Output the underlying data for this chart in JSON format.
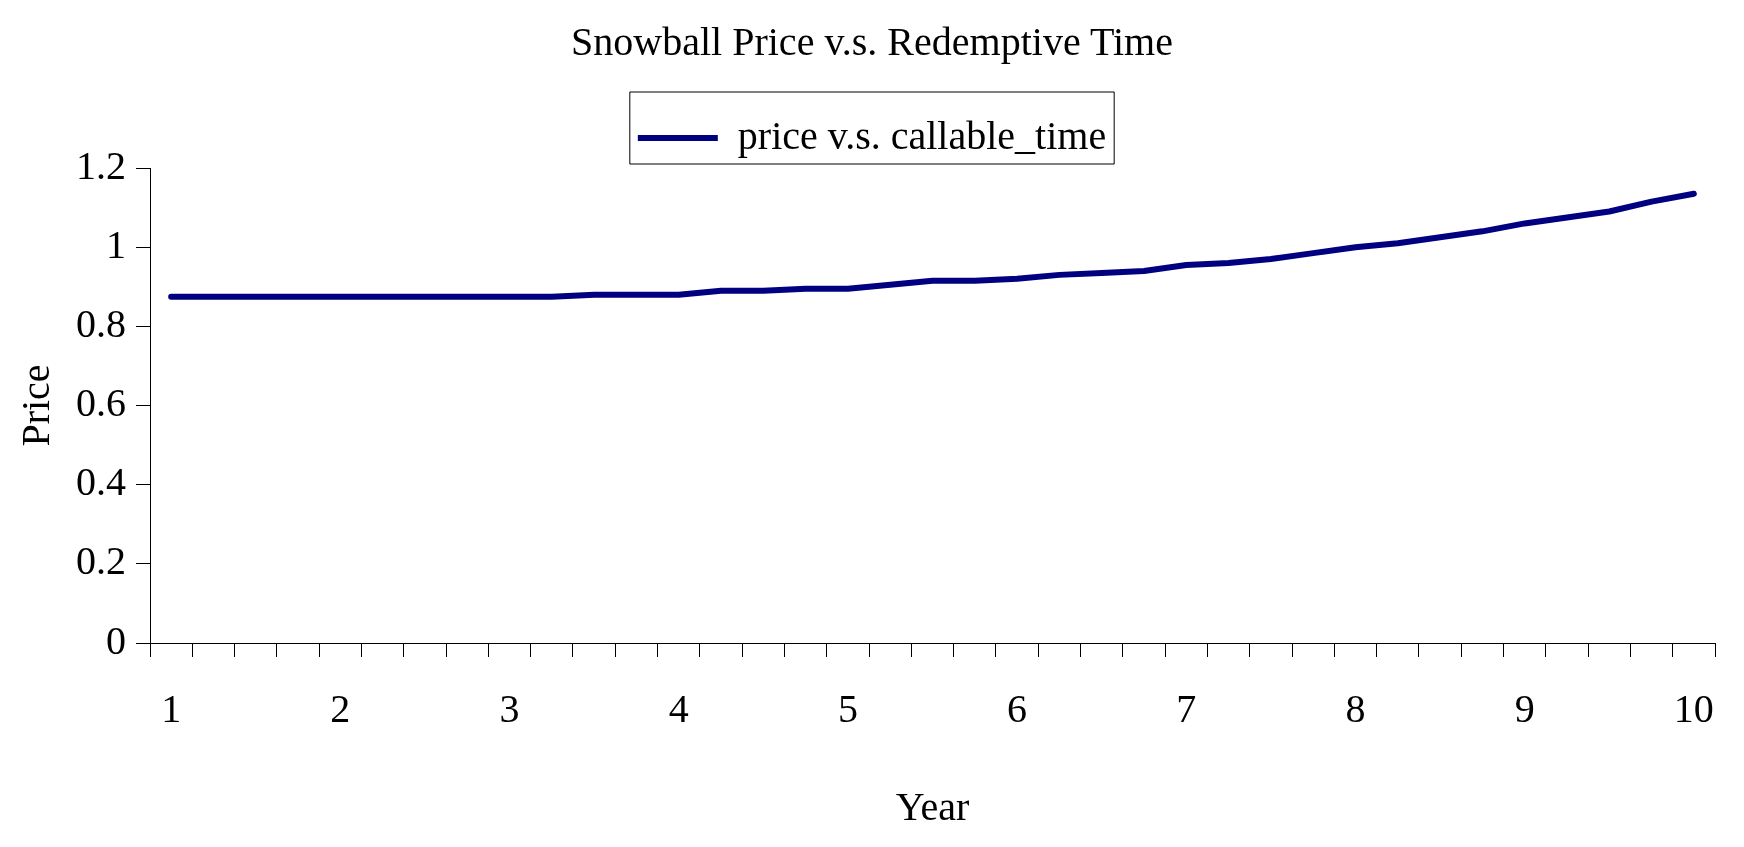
{
  "chart_data": {
    "type": "line",
    "title": "Snowball Price v.s. Redemptive Time",
    "xlabel": "Year",
    "ylabel": "Price",
    "categories": [
      "1",
      null,
      null,
      null,
      "2",
      null,
      null,
      null,
      "3",
      null,
      null,
      null,
      "4",
      null,
      null,
      null,
      "5",
      null,
      null,
      null,
      "6",
      null,
      null,
      null,
      "7",
      null,
      null,
      null,
      "8",
      null,
      null,
      null,
      "9",
      null,
      null,
      null,
      "10"
    ],
    "series": [
      {
        "name": "price v.s. callable_time",
        "color": "#000080",
        "values": [
          0.875,
          0.875,
          0.875,
          0.875,
          0.875,
          0.875,
          0.875,
          0.875,
          0.875,
          0.875,
          0.88,
          0.88,
          0.88,
          0.89,
          0.89,
          0.895,
          0.895,
          0.905,
          0.915,
          0.915,
          0.92,
          0.93,
          0.935,
          0.94,
          0.955,
          0.96,
          0.97,
          0.985,
          1.0,
          1.01,
          1.025,
          1.04,
          1.06,
          1.075,
          1.09,
          1.115,
          1.135
        ]
      }
    ],
    "ylim": [
      0,
      1.2
    ],
    "yticks": [
      0,
      0.2,
      0.4,
      0.6,
      0.8,
      1,
      1.2
    ],
    "grid": false,
    "legend": "top",
    "marker": "none",
    "line_style": "solid"
  }
}
